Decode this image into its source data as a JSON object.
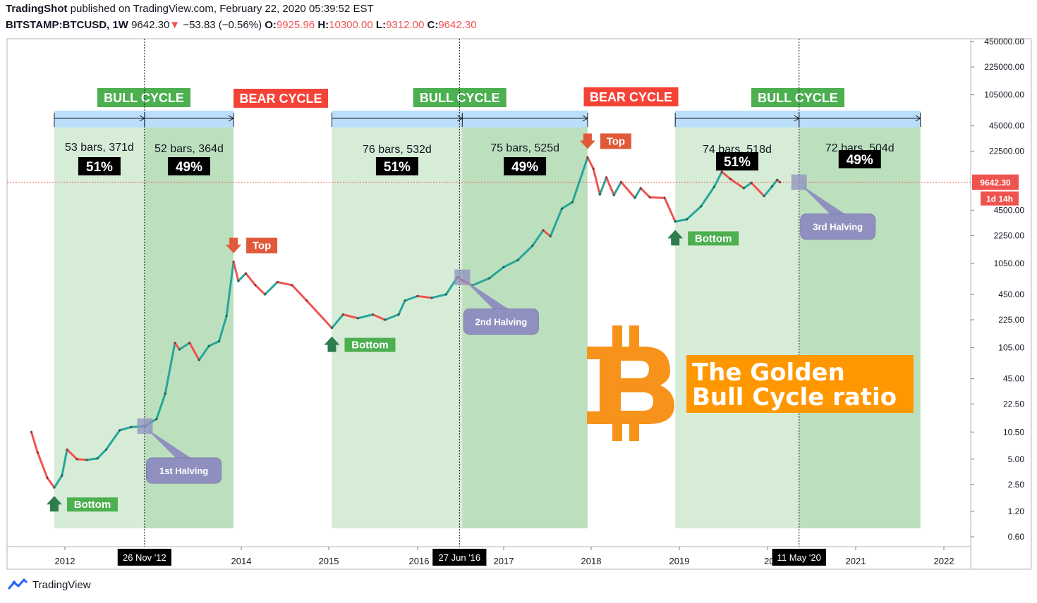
{
  "header": {
    "author": "TradingShot",
    "published_text": "published on TradingView.com, February 22, 2020 05:39:52 EST",
    "symbol": "BITSTAMP:BTCUSD, 1W",
    "last": "9642.30",
    "change_arrow": "▼",
    "change": "−53.83 (−0.56%)",
    "o_label": "O:",
    "o_value": "9925.96",
    "h_label": "H:",
    "h_value": "10300.00",
    "l_label": "L:",
    "l_value": "9312.00",
    "c_label": "C:",
    "c_value": "9642.30"
  },
  "footer": {
    "brand": "TradingView",
    "icon": "tradingview-logo-icon"
  },
  "chart_data": {
    "type": "line",
    "title": "The Golden Bull Cycle ratio",
    "price_scale": "log",
    "x_tick_labels": [
      "2012",
      "2014",
      "2015",
      "2016",
      "2017",
      "2018",
      "2019",
      "202",
      "2021",
      "2022"
    ],
    "y_tick_labels": [
      "450000.00",
      "225000.00",
      "105000.00",
      "45000.00",
      "22500.00",
      "4500.00",
      "2250.00",
      "1050.00",
      "450.00",
      "225.00",
      "105.00",
      "45.00",
      "22.50",
      "10.50",
      "5.00",
      "2.50",
      "1.20",
      "0.60"
    ],
    "y_ticks": [
      450000,
      225000,
      105000,
      45000,
      22500,
      4500,
      2250,
      1050,
      450,
      225,
      105,
      45,
      22.5,
      10.5,
      5,
      2.5,
      1.2,
      0.6
    ],
    "x_range": [
      "2011-06-01",
      "2022-06-01"
    ],
    "y_range": [
      0.45,
      600000
    ],
    "series": [
      {
        "values": [
          [
            "2011-08-15",
            10.5
          ],
          [
            "2011-09-10",
            6
          ],
          [
            "2011-10-20",
            3
          ],
          [
            "2011-11-18",
            2.3
          ],
          [
            "2011-12-20",
            3.2
          ],
          [
            "2012-01-10",
            6.5
          ],
          [
            "2012-02-20",
            5
          ],
          [
            "2012-04-01",
            4.9
          ],
          [
            "2012-05-15",
            5.1
          ],
          [
            "2012-06-20",
            6.5
          ],
          [
            "2012-08-15",
            11
          ],
          [
            "2012-10-01",
            12
          ],
          [
            "2012-11-26",
            12.3
          ],
          [
            "2013-01-15",
            15
          ],
          [
            "2013-02-20",
            30
          ],
          [
            "2013-04-01",
            120
          ],
          [
            "2013-04-20",
            100
          ],
          [
            "2013-06-01",
            120
          ],
          [
            "2013-07-10",
            75
          ],
          [
            "2013-08-20",
            110
          ],
          [
            "2013-10-01",
            125
          ],
          [
            "2013-11-01",
            250
          ],
          [
            "2013-11-30",
            1100
          ],
          [
            "2013-12-20",
            650
          ],
          [
            "2014-01-20",
            800
          ],
          [
            "2014-03-01",
            580
          ],
          [
            "2014-04-10",
            450
          ],
          [
            "2014-06-01",
            630
          ],
          [
            "2014-08-01",
            580
          ],
          [
            "2014-10-01",
            380
          ],
          [
            "2015-01-14",
            180
          ],
          [
            "2015-03-01",
            260
          ],
          [
            "2015-05-01",
            235
          ],
          [
            "2015-07-01",
            260
          ],
          [
            "2015-08-20",
            225
          ],
          [
            "2015-10-15",
            260
          ],
          [
            "2015-11-10",
            380
          ],
          [
            "2016-01-01",
            430
          ],
          [
            "2016-03-01",
            410
          ],
          [
            "2016-05-01",
            450
          ],
          [
            "2016-06-18",
            720
          ],
          [
            "2016-07-10",
            660
          ],
          [
            "2016-08-20",
            575
          ],
          [
            "2016-11-01",
            700
          ],
          [
            "2017-01-01",
            950
          ],
          [
            "2017-03-01",
            1150
          ],
          [
            "2017-05-01",
            1700
          ],
          [
            "2017-06-15",
            2600
          ],
          [
            "2017-07-15",
            2200
          ],
          [
            "2017-09-01",
            4700
          ],
          [
            "2017-10-15",
            5600
          ],
          [
            "2017-12-17",
            19000
          ],
          [
            "2018-01-10",
            14000
          ],
          [
            "2018-02-06",
            6900
          ],
          [
            "2018-03-05",
            11000
          ],
          [
            "2018-04-05",
            6800
          ],
          [
            "2018-05-05",
            9700
          ],
          [
            "2018-07-01",
            6300
          ],
          [
            "2018-07-25",
            8200
          ],
          [
            "2018-09-01",
            6400
          ],
          [
            "2018-11-01",
            6300
          ],
          [
            "2018-12-15",
            3300
          ],
          [
            "2019-02-01",
            3500
          ],
          [
            "2019-04-01",
            5000
          ],
          [
            "2019-05-25",
            8500
          ],
          [
            "2019-06-26",
            12800
          ],
          [
            "2019-08-01",
            10500
          ],
          [
            "2019-09-25",
            8200
          ],
          [
            "2019-10-26",
            9500
          ],
          [
            "2019-12-18",
            6600
          ],
          [
            "2020-01-20",
            8600
          ],
          [
            "2020-02-10",
            10300
          ],
          [
            "2020-02-22",
            9642.3
          ]
        ]
      }
    ],
    "cycles": [
      {
        "label": "BULL CYCLE",
        "kind": "bull",
        "start": "2011-11-18",
        "mid": "2012-11-26",
        "end": "2013-11-30",
        "left_stats": "53 bars, 371d",
        "right_stats": "52 bars, 364d",
        "left_pct": "51%",
        "right_pct": "49%"
      },
      {
        "label": "BULL CYCLE",
        "kind": "bull",
        "start": "2015-01-14",
        "mid": "2016-07-09",
        "end": "2017-12-17",
        "left_stats": "76 bars, 532d",
        "right_stats": "75 bars, 525d",
        "left_pct": "51%",
        "right_pct": "49%"
      },
      {
        "label": "BULL CYCLE",
        "kind": "bull",
        "start": "2018-12-15",
        "mid": "2020-05-11",
        "end": "2021-09-26",
        "left_stats": "74 bars, 518d",
        "right_stats": "72 bars, 504d",
        "left_pct": "51%",
        "right_pct": "49%"
      }
    ],
    "bear_labels": [
      {
        "label": "BEAR CYCLE",
        "date": "2014-06-15"
      },
      {
        "label": "BEAR CYCLE",
        "date": "2018-06-15"
      }
    ],
    "markers": [
      {
        "kind": "top",
        "label": "Top",
        "date": "2013-11-30",
        "price": 1100
      },
      {
        "kind": "top",
        "label": "Top",
        "date": "2017-12-17",
        "price": 19000
      },
      {
        "kind": "bottom",
        "label": "Bottom",
        "date": "2011-11-18",
        "price": 2.3
      },
      {
        "kind": "bottom",
        "label": "Bottom",
        "date": "2015-01-14",
        "price": 180
      },
      {
        "kind": "bottom",
        "label": "Bottom",
        "date": "2018-12-15",
        "price": 3300
      }
    ],
    "halvings": [
      {
        "label": "1st Halving",
        "date": "2012-11-28",
        "price": 12.3
      },
      {
        "label": "2nd Halving",
        "date": "2016-07-09",
        "price": 720
      },
      {
        "label": "3rd Halving",
        "date": "2020-05-11",
        "price": 9642.3
      }
    ],
    "date_labels": [
      {
        "label": "26 Nov '12",
        "date": "2012-11-26"
      },
      {
        "label": "27 Jun '16",
        "date": "2016-06-27"
      },
      {
        "label": "11 May '20",
        "date": "2020-05-11"
      }
    ],
    "last_price_label": "9642.30",
    "countdown_label": "1d 14h",
    "title_line1": "The Golden",
    "title_line2": "Bull Cycle ratio",
    "colors": {
      "up": "#26a69a",
      "down": "#ef5350",
      "bull_light": "#c8e6c9",
      "bull_dark": "#a5d6a7",
      "bull_label": "#4caf50",
      "bear_label": "#f44336",
      "halving": "#9090c0",
      "bitcoin": "#f7931a",
      "title_box": "#ff9800",
      "top_arrow": "#e05a3a",
      "bottom_arrow": "#2e7d4f"
    },
    "grid": false,
    "legend": "none"
  }
}
